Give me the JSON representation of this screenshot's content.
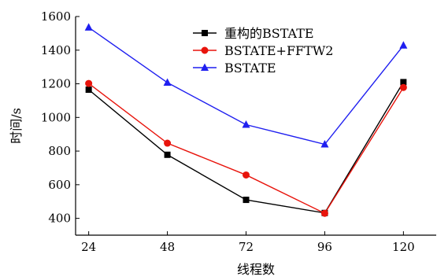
{
  "chart_data": {
    "type": "line",
    "title": "",
    "xlabel": "线程数",
    "ylabel": "时间/s",
    "x": [
      24,
      48,
      72,
      96,
      120
    ],
    "xlim": [
      20,
      130
    ],
    "ylim": [
      300,
      1600
    ],
    "xticks": [
      "24",
      "48",
      "72",
      "96",
      "120"
    ],
    "yticks": [
      "400",
      "600",
      "800",
      "1000",
      "1200",
      "1400",
      "1600"
    ],
    "grid": false,
    "legend_position": "top-right",
    "series": [
      {
        "name": "重构的BSTATE",
        "color": "#000000",
        "marker": "square",
        "values": [
          1165,
          778,
          510,
          432,
          1210
        ]
      },
      {
        "name": "BSTATE+FFTW2",
        "color": "#e8140c",
        "marker": "circle",
        "values": [
          1202,
          847,
          658,
          430,
          1178
        ]
      },
      {
        "name": "BSTATE",
        "color": "#1f1ff0",
        "marker": "triangle",
        "values": [
          1535,
          1207,
          957,
          840,
          1428
        ]
      }
    ]
  }
}
